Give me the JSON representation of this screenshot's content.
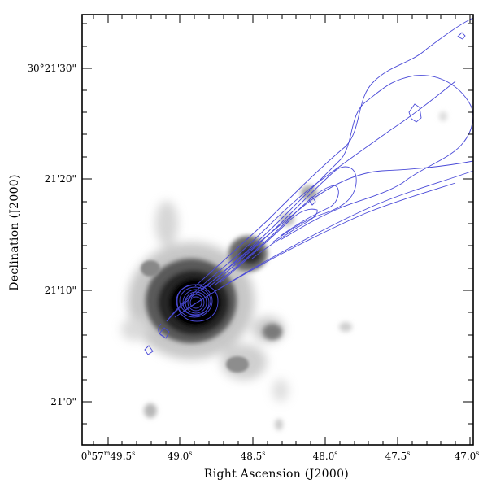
{
  "figure": {
    "xlabel": "Right Ascension (J2000)",
    "ylabel": "Declination (J2000)",
    "x_ticks": [
      {
        "main": "0",
        "h": "h",
        "m_val": "57",
        "m": "m",
        "s_val": "49.5",
        "s": "s",
        "ra_seconds": 49.5
      },
      {
        "main": "49.0",
        "s": "s",
        "ra_seconds": 49.0
      },
      {
        "main": "48.5",
        "s": "s",
        "ra_seconds": 48.5
      },
      {
        "main": "48.0",
        "s": "s",
        "ra_seconds": 48.0
      },
      {
        "main": "47.5",
        "s": "s",
        "ra_seconds": 47.5
      },
      {
        "main": "47.0",
        "s": "s",
        "ra_seconds": 47.0
      }
    ],
    "y_ticks": [
      {
        "label": "30°21'30\"",
        "dec_arcsec": 30
      },
      {
        "label": "21'20\"",
        "dec_arcsec": 20
      },
      {
        "label": "21'10\"",
        "dec_arcsec": 10
      },
      {
        "label": "21'0\"",
        "dec_arcsec": 0
      }
    ],
    "colors": {
      "contour": "#4a4ad8",
      "frame": "#000000",
      "greyscale_max": "#000000"
    },
    "overlay": "radio contours (blue) on greyscale emission map"
  }
}
